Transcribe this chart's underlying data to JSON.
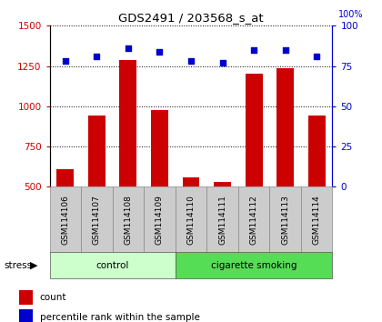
{
  "title": "GDS2491 / 203568_s_at",
  "samples": [
    "GSM114106",
    "GSM114107",
    "GSM114108",
    "GSM114109",
    "GSM114110",
    "GSM114111",
    "GSM114112",
    "GSM114113",
    "GSM114114"
  ],
  "counts": [
    610,
    940,
    1285,
    975,
    560,
    530,
    1205,
    1235,
    940
  ],
  "percentiles": [
    78,
    81,
    86,
    84,
    78,
    77,
    85,
    85,
    81
  ],
  "groups": [
    {
      "label": "control",
      "samples": 4,
      "color": "#ccffcc"
    },
    {
      "label": "cigarette smoking",
      "samples": 5,
      "color": "#55dd55"
    }
  ],
  "stress_label": "stress",
  "ylim_left": [
    500,
    1500
  ],
  "ylim_right": [
    0,
    100
  ],
  "yticks_left": [
    500,
    750,
    1000,
    1250,
    1500
  ],
  "yticks_right": [
    0,
    25,
    50,
    75,
    100
  ],
  "bar_color": "#cc0000",
  "dot_color": "#0000cc",
  "bg_color": "#cccccc",
  "legend_count_label": "count",
  "legend_pct_label": "percentile rank within the sample"
}
